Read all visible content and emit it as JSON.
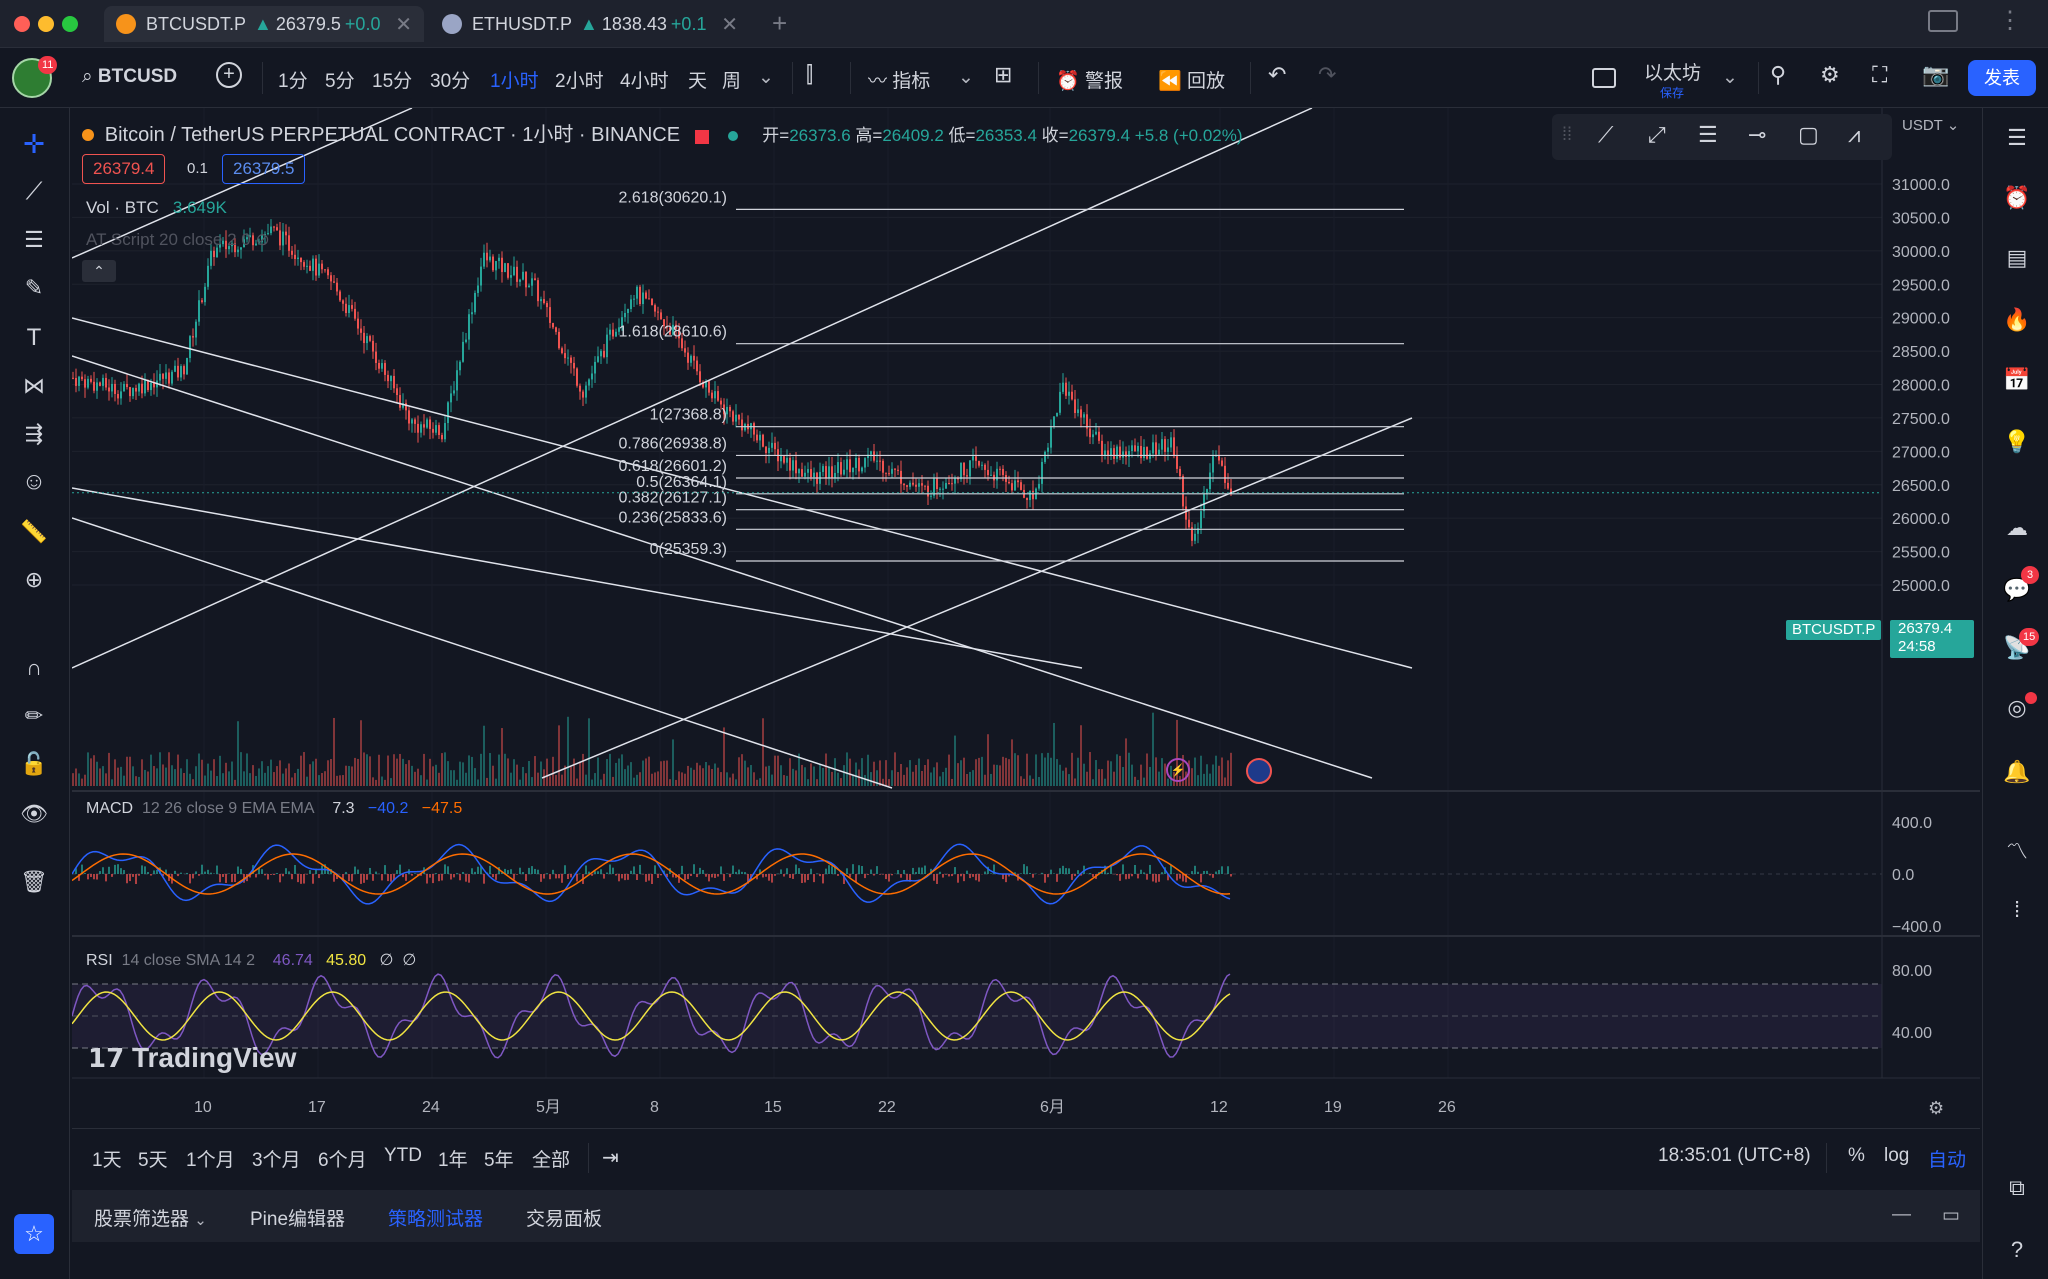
{
  "tabs": [
    {
      "symbol": "BTCUSDT.P",
      "arrow": "▲",
      "price": "26379.5",
      "change": "+0.0"
    },
    {
      "symbol": "ETHUSDT.P",
      "arrow": "▲",
      "price": "1838.43",
      "change": "+0.1"
    }
  ],
  "toolbar": {
    "notif_count": "11",
    "symbol": "BTCUSD",
    "intervals": [
      "1分",
      "5分",
      "15分",
      "30分",
      "1小时",
      "2小时",
      "4小时",
      "天",
      "周"
    ],
    "active_interval": "1小时",
    "indicators": "指标",
    "alert": "警报",
    "replay": "回放",
    "layout_name": "以太坊",
    "layout_sub": "保存",
    "publish": "发表"
  },
  "legend": {
    "title": "Bitcoin / TetherUS PERPETUAL CONTRACT · 1小时 · BINANCE",
    "o_label": "开=",
    "o": "26373.6",
    "h_label": "高=",
    "h": "26409.2",
    "l_label": "低=",
    "l": "26353.4",
    "c_label": "收=",
    "c": "26379.4",
    "change": "+5.8 (+0.02%)",
    "bid": "26379.4",
    "spread": "0.1",
    "ask": "26379.5",
    "vol_label": "Vol · BTC",
    "vol": "3.649K",
    "script": "AT Script 20 close 2 0",
    "currency": "USDT"
  },
  "macd": {
    "label": "MACD",
    "params": "12 26 close 9 EMA EMA",
    "v1": "7.3",
    "v2": "−40.2",
    "v3": "−47.5"
  },
  "rsi": {
    "label": "RSI",
    "params": "14 close SMA 14 2",
    "v1": "46.74",
    "v2": "45.80",
    "s1": "∅",
    "s2": "∅"
  },
  "price_axis": [
    "31000.0",
    "30500.0",
    "30000.0",
    "29500.0",
    "29000.0",
    "28500.0",
    "28000.0",
    "27500.0",
    "27000.0",
    "26500.0",
    "26000.0",
    "25500.0",
    "25000.0"
  ],
  "macd_axis": [
    "400.0",
    "0.0",
    "−400.0"
  ],
  "rsi_axis": [
    "80.00",
    "40.00"
  ],
  "time_axis": [
    "10",
    "17",
    "24",
    "5月",
    "8",
    "15",
    "22",
    "6月",
    "12",
    "19",
    "26"
  ],
  "last_price": {
    "symbol": "BTCUSDT.P",
    "price": "26379.4",
    "countdown": "24:58"
  },
  "fib_levels": [
    {
      "label": "2.618(30620.1)"
    },
    {
      "label": "1.618(28610.6)"
    },
    {
      "label": "1(27368.8)"
    },
    {
      "label": "0.786(26938.8)"
    },
    {
      "label": "0.618(26601.2)"
    },
    {
      "label": "0.5(26364.1)"
    },
    {
      "label": "0.382(26127.1)"
    },
    {
      "label": "0.236(25833.6)"
    },
    {
      "label": "0(25359.3)"
    }
  ],
  "watermark": "TradingView",
  "ranges": [
    "1天",
    "5天",
    "1个月",
    "3个月",
    "6个月",
    "YTD",
    "1年",
    "5年",
    "全部"
  ],
  "clock": "18:35:01 (UTC+8)",
  "scale_opts": [
    "%",
    "log",
    "自动"
  ],
  "panels": [
    "股票筛选器",
    "Pine编辑器",
    "策略测试器",
    "交易面板"
  ],
  "active_panel": "策略测试器",
  "right_badges": [
    "3",
    "15"
  ],
  "colors": {
    "up": "#26a69a",
    "down": "#ef5350",
    "accent": "#2962ff",
    "bg": "#131722",
    "macd": "#2962ff",
    "signal": "#ff6d00",
    "rsi": "#7e57c2",
    "rsi_ma": "#f0e442"
  }
}
